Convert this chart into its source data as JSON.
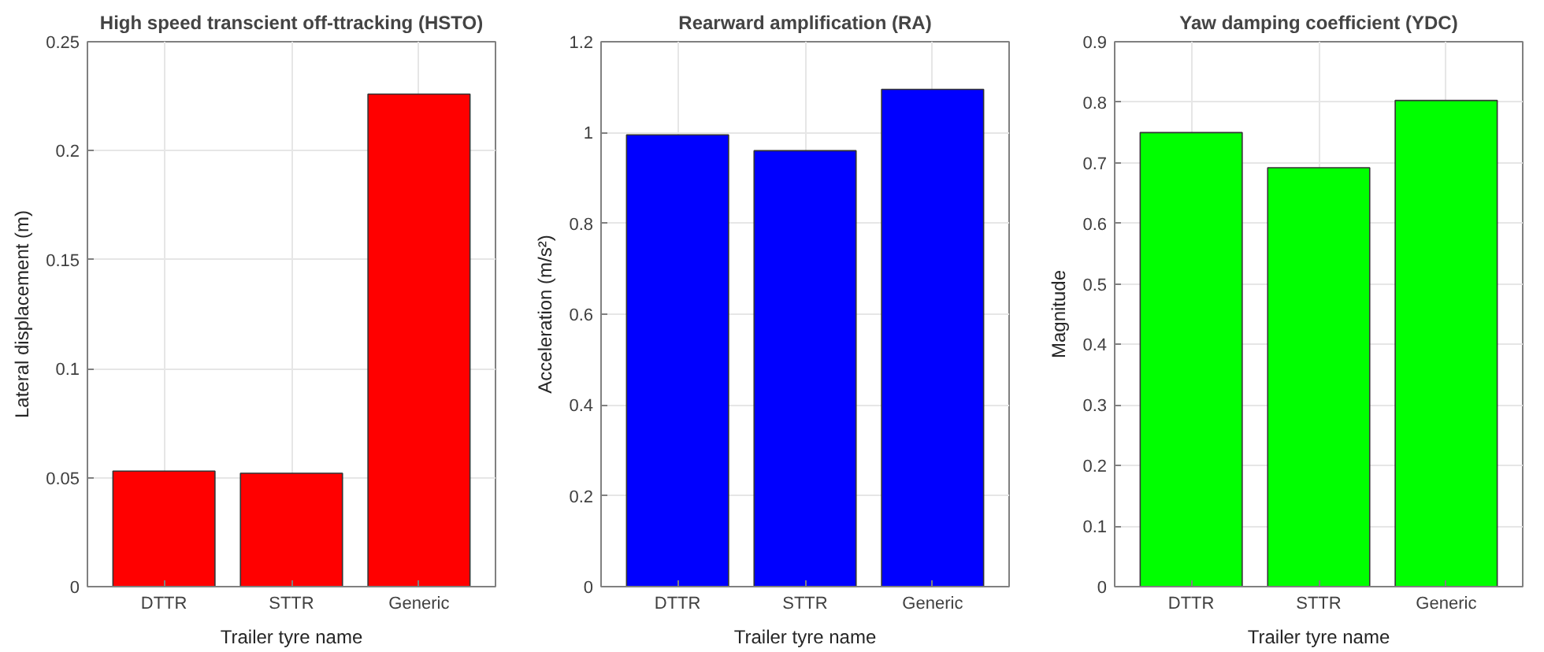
{
  "chart_data": [
    {
      "type": "bar",
      "title": "High speed transcient off-ttracking (HSTO)",
      "xlabel": "Trailer tyre name",
      "ylabel": "Lateral displacement (m)",
      "categories": [
        "DTTR",
        "STTR",
        "Generic"
      ],
      "values": [
        0.053,
        0.052,
        0.226
      ],
      "color": "#ff0000",
      "ylim": [
        0,
        0.25
      ],
      "yticks": [
        0,
        0.05,
        0.1,
        0.15,
        0.2,
        0.25
      ],
      "grid": true
    },
    {
      "type": "bar",
      "title": "Rearward amplification (RA)",
      "xlabel": "Trailer tyre name",
      "ylabel": "Acceleration (m/s²)",
      "categories": [
        "DTTR",
        "STTR",
        "Generic"
      ],
      "values": [
        0.995,
        0.96,
        1.095
      ],
      "color": "#0000ff",
      "ylim": [
        0,
        1.2
      ],
      "yticks": [
        0,
        0.2,
        0.4,
        0.6,
        0.8,
        1,
        1.2
      ],
      "grid": true
    },
    {
      "type": "bar",
      "title": "Yaw damping coefficient (YDC)",
      "xlabel": "Trailer tyre name",
      "ylabel": "Magnitude",
      "categories": [
        "DTTR",
        "STTR",
        "Generic"
      ],
      "values": [
        0.75,
        0.692,
        0.803
      ],
      "color": "#00ff00",
      "ylim": [
        0,
        0.9
      ],
      "yticks": [
        0,
        0.1,
        0.2,
        0.3,
        0.4,
        0.5,
        0.6,
        0.7,
        0.8,
        0.9
      ],
      "grid": true
    }
  ]
}
